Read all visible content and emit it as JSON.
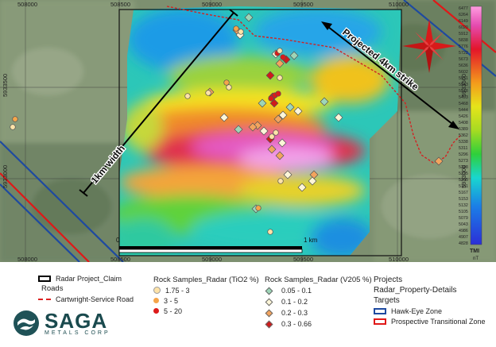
{
  "map": {
    "x_ticks": [
      "508000",
      "508500",
      "509000",
      "509500",
      "510000"
    ],
    "y_ticks": [
      "5933500",
      "5933000"
    ],
    "annotations": {
      "width_label": "1km width",
      "strike_label": "Projected 4km strike",
      "scale_label": "1 km",
      "scale_zero": "0"
    },
    "colorbar": {
      "values": [
        "6477",
        "6264",
        "6149",
        "6020",
        "5912",
        "5838",
        "5776",
        "5722",
        "5673",
        "5636",
        "5602",
        "5571",
        "5543",
        "5518",
        "5493",
        "5468",
        "5444",
        "5426",
        "5408",
        "5389",
        "5362",
        "5338",
        "5311",
        "5296",
        "5273",
        "5248",
        "5225",
        "5205",
        "5181",
        "5167",
        "5153",
        "5132",
        "5105",
        "5079",
        "5043",
        "4986",
        "4907",
        "4828"
      ],
      "title": "TMI",
      "unit": "nT"
    }
  },
  "legend": {
    "claim": {
      "label": "Radar Project_Claim"
    },
    "roads": {
      "title": "Roads",
      "items": [
        {
          "label": "Cartwright-Service Road",
          "color": "#d22222"
        }
      ]
    },
    "tio2": {
      "title": "Rock Samples_Radar (TiO2 %)",
      "items": [
        {
          "label": "1.75 - 3",
          "color": "#ffe3a8"
        },
        {
          "label": "3 - 5",
          "color": "#f5a54a"
        },
        {
          "label": "5 - 20",
          "color": "#dd1a1a"
        }
      ]
    },
    "v2o5": {
      "title": "Rock Samples_Radar (V205 %)",
      "items": [
        {
          "label": "0.05 - 0.1",
          "color": "#9ed6b8"
        },
        {
          "label": "0.1 - 0.2",
          "color": "#fdf6d8"
        },
        {
          "label": "0.2 - 0.3",
          "color": "#f3a45e"
        },
        {
          "label": "0.3 - 0.66",
          "color": "#cf1b1b"
        }
      ]
    },
    "projects": {
      "title": "Projects",
      "item": "Radar_Property-Details"
    },
    "targets": {
      "title": "Targets",
      "items": [
        {
          "label": "Hawk-Eye Zone",
          "color": "#1e4aa0"
        },
        {
          "label": "Prospective Transitional Zone",
          "color": "#e01818"
        }
      ]
    }
  },
  "logo": {
    "brand": "SAGA",
    "sub": "METALS CORP"
  }
}
